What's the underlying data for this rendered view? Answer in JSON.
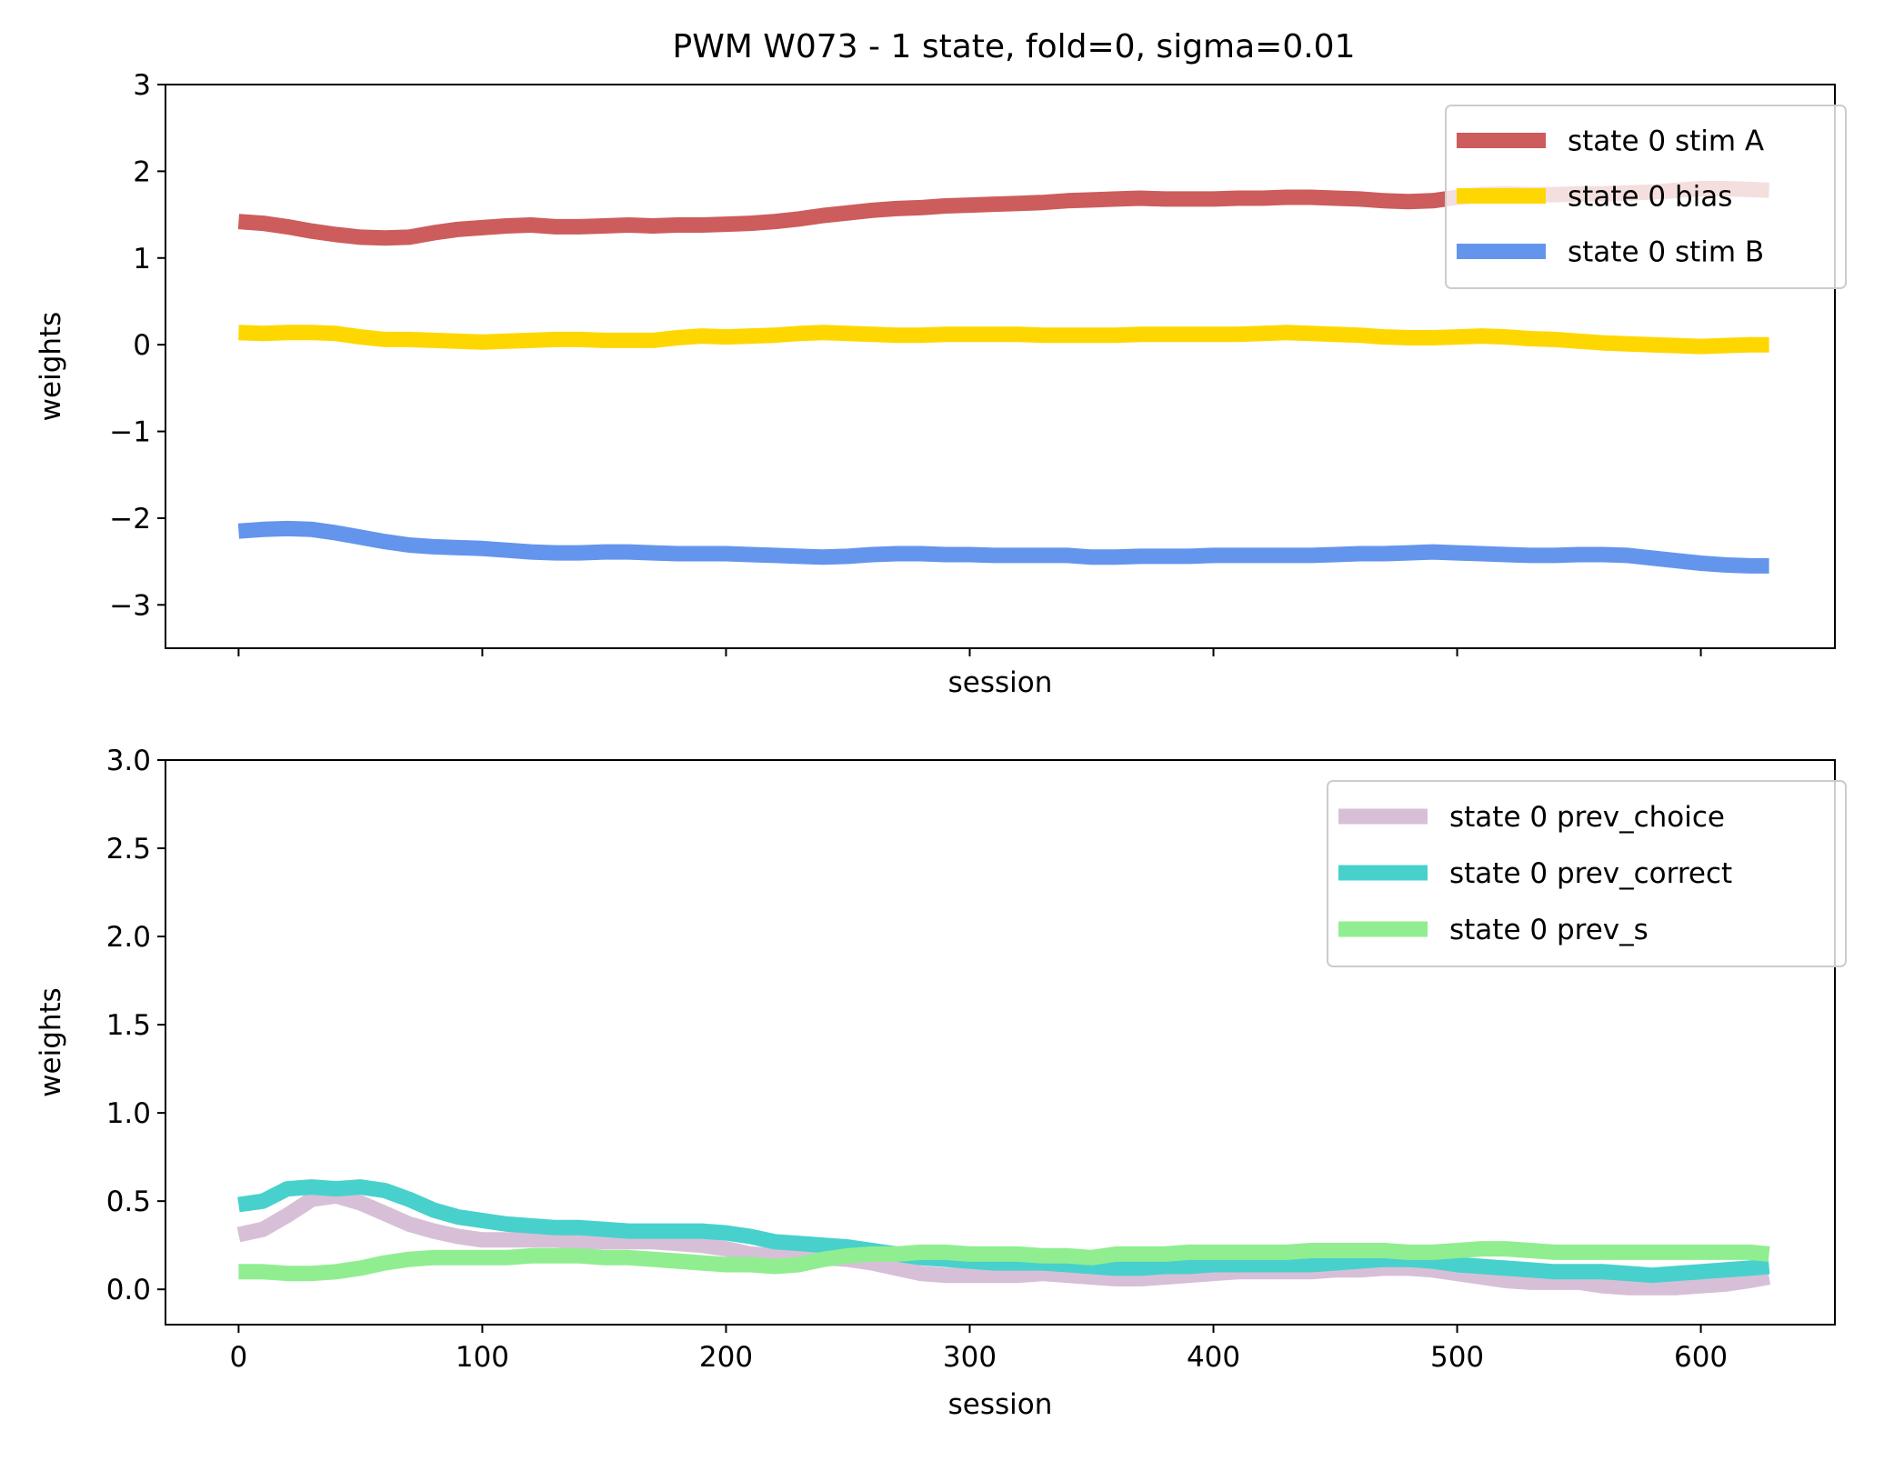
{
  "title": "PWM W073 - 1 state, fold=0, sigma=0.01",
  "chart_data": [
    {
      "type": "line",
      "xlabel": "session",
      "ylabel": "weights",
      "xlim": [
        -30,
        655
      ],
      "ylim": [
        -3.5,
        3
      ],
      "x_ticks": [
        0,
        100,
        200,
        300,
        400,
        500,
        600
      ],
      "x_tick_labels_shown": false,
      "y_ticks": [
        -3,
        -2,
        -1,
        0,
        1,
        2,
        3
      ],
      "y_tick_labels": [
        "−3",
        "−2",
        "−1",
        "0",
        "1",
        "2",
        "3"
      ],
      "legend_position": "upper-right",
      "series": [
        {
          "name": "state 0 stim A",
          "color": "#cd5c5c",
          "x": [
            0,
            10,
            20,
            30,
            40,
            50,
            60,
            70,
            80,
            90,
            100,
            110,
            120,
            130,
            140,
            150,
            160,
            170,
            180,
            190,
            200,
            210,
            220,
            230,
            240,
            250,
            260,
            270,
            280,
            290,
            300,
            310,
            320,
            330,
            340,
            350,
            360,
            370,
            380,
            390,
            400,
            410,
            420,
            430,
            440,
            450,
            460,
            470,
            480,
            490,
            500,
            510,
            520,
            530,
            540,
            550,
            560,
            570,
            580,
            590,
            600,
            610,
            620,
            628
          ],
          "values": [
            1.42,
            1.4,
            1.36,
            1.31,
            1.27,
            1.24,
            1.23,
            1.24,
            1.29,
            1.33,
            1.35,
            1.37,
            1.38,
            1.36,
            1.36,
            1.37,
            1.38,
            1.37,
            1.38,
            1.38,
            1.39,
            1.4,
            1.42,
            1.45,
            1.49,
            1.52,
            1.55,
            1.57,
            1.58,
            1.6,
            1.61,
            1.62,
            1.63,
            1.64,
            1.66,
            1.67,
            1.68,
            1.69,
            1.68,
            1.68,
            1.68,
            1.69,
            1.69,
            1.7,
            1.7,
            1.69,
            1.68,
            1.66,
            1.65,
            1.66,
            1.7,
            1.73,
            1.74,
            1.73,
            1.73,
            1.74,
            1.74,
            1.75,
            1.76,
            1.78,
            1.8,
            1.8,
            1.79,
            1.78
          ]
        },
        {
          "name": "state 0 bias",
          "color": "#ffd700",
          "x": [
            0,
            10,
            20,
            30,
            40,
            50,
            60,
            70,
            80,
            90,
            100,
            110,
            120,
            130,
            140,
            150,
            160,
            170,
            180,
            190,
            200,
            210,
            220,
            230,
            240,
            250,
            260,
            270,
            280,
            290,
            300,
            310,
            320,
            330,
            340,
            350,
            360,
            370,
            380,
            390,
            400,
            410,
            420,
            430,
            440,
            450,
            460,
            470,
            480,
            490,
            500,
            510,
            520,
            530,
            540,
            550,
            560,
            570,
            580,
            590,
            600,
            610,
            620,
            628
          ],
          "values": [
            0.14,
            0.13,
            0.14,
            0.14,
            0.13,
            0.09,
            0.06,
            0.06,
            0.05,
            0.04,
            0.03,
            0.04,
            0.05,
            0.06,
            0.06,
            0.05,
            0.05,
            0.05,
            0.08,
            0.1,
            0.09,
            0.1,
            0.11,
            0.13,
            0.14,
            0.13,
            0.12,
            0.11,
            0.11,
            0.12,
            0.12,
            0.12,
            0.12,
            0.11,
            0.11,
            0.11,
            0.11,
            0.12,
            0.12,
            0.12,
            0.12,
            0.12,
            0.13,
            0.14,
            0.13,
            0.12,
            0.11,
            0.09,
            0.08,
            0.08,
            0.09,
            0.1,
            0.09,
            0.07,
            0.06,
            0.04,
            0.02,
            0.01,
            0.0,
            -0.01,
            -0.02,
            -0.01,
            0.0,
            0.0
          ]
        },
        {
          "name": "state 0 stim B",
          "color": "#6495ed",
          "x": [
            0,
            10,
            20,
            30,
            40,
            50,
            60,
            70,
            80,
            90,
            100,
            110,
            120,
            130,
            140,
            150,
            160,
            170,
            180,
            190,
            200,
            210,
            220,
            230,
            240,
            250,
            260,
            270,
            280,
            290,
            300,
            310,
            320,
            330,
            340,
            350,
            360,
            370,
            380,
            390,
            400,
            410,
            420,
            430,
            440,
            450,
            460,
            470,
            480,
            490,
            500,
            510,
            520,
            530,
            540,
            550,
            560,
            570,
            580,
            590,
            600,
            610,
            620,
            628
          ],
          "values": [
            -2.15,
            -2.13,
            -2.12,
            -2.13,
            -2.17,
            -2.22,
            -2.27,
            -2.31,
            -2.33,
            -2.34,
            -2.35,
            -2.37,
            -2.39,
            -2.4,
            -2.4,
            -2.39,
            -2.39,
            -2.4,
            -2.41,
            -2.41,
            -2.41,
            -2.42,
            -2.43,
            -2.44,
            -2.45,
            -2.44,
            -2.42,
            -2.41,
            -2.41,
            -2.42,
            -2.42,
            -2.43,
            -2.43,
            -2.43,
            -2.43,
            -2.45,
            -2.45,
            -2.44,
            -2.44,
            -2.44,
            -2.43,
            -2.43,
            -2.43,
            -2.43,
            -2.43,
            -2.42,
            -2.41,
            -2.41,
            -2.4,
            -2.39,
            -2.4,
            -2.41,
            -2.42,
            -2.43,
            -2.43,
            -2.42,
            -2.42,
            -2.43,
            -2.46,
            -2.49,
            -2.52,
            -2.54,
            -2.55,
            -2.55
          ]
        }
      ]
    },
    {
      "type": "line",
      "xlabel": "session",
      "ylabel": "weights",
      "xlim": [
        -30,
        655
      ],
      "ylim": [
        -0.2,
        3.0
      ],
      "x_ticks": [
        0,
        100,
        200,
        300,
        400,
        500,
        600
      ],
      "x_tick_labels": [
        "0",
        "100",
        "200",
        "300",
        "400",
        "500",
        "600"
      ],
      "y_ticks": [
        0.0,
        0.5,
        1.0,
        1.5,
        2.0,
        2.5,
        3.0
      ],
      "y_tick_labels": [
        "0.0",
        "0.5",
        "1.0",
        "1.5",
        "2.0",
        "2.5",
        "3.0"
      ],
      "legend_position": "upper-right",
      "series": [
        {
          "name": "state 0 prev_choice",
          "color": "#d8bfd8",
          "x": [
            0,
            10,
            20,
            30,
            40,
            50,
            60,
            70,
            80,
            90,
            100,
            110,
            120,
            130,
            140,
            150,
            160,
            170,
            180,
            190,
            200,
            210,
            220,
            230,
            240,
            250,
            260,
            270,
            280,
            290,
            300,
            310,
            320,
            330,
            340,
            350,
            360,
            370,
            380,
            390,
            400,
            410,
            420,
            430,
            440,
            450,
            460,
            470,
            480,
            490,
            500,
            510,
            520,
            530,
            540,
            550,
            560,
            570,
            580,
            590,
            600,
            610,
            620,
            628
          ],
          "values": [
            0.31,
            0.34,
            0.42,
            0.51,
            0.53,
            0.49,
            0.43,
            0.37,
            0.33,
            0.3,
            0.28,
            0.28,
            0.28,
            0.28,
            0.27,
            0.27,
            0.27,
            0.27,
            0.26,
            0.25,
            0.23,
            0.2,
            0.19,
            0.18,
            0.18,
            0.17,
            0.15,
            0.12,
            0.09,
            0.08,
            0.08,
            0.08,
            0.08,
            0.09,
            0.08,
            0.07,
            0.06,
            0.06,
            0.07,
            0.08,
            0.09,
            0.1,
            0.1,
            0.1,
            0.1,
            0.11,
            0.11,
            0.12,
            0.12,
            0.11,
            0.09,
            0.07,
            0.05,
            0.04,
            0.04,
            0.04,
            0.02,
            0.01,
            0.01,
            0.01,
            0.02,
            0.03,
            0.05,
            0.07
          ]
        },
        {
          "name": "state 0 prev_correct",
          "color": "#48d1cc",
          "x": [
            0,
            10,
            20,
            30,
            40,
            50,
            60,
            70,
            80,
            90,
            100,
            110,
            120,
            130,
            140,
            150,
            160,
            170,
            180,
            190,
            200,
            210,
            220,
            230,
            240,
            250,
            260,
            270,
            280,
            290,
            300,
            310,
            320,
            330,
            340,
            350,
            360,
            370,
            380,
            390,
            400,
            410,
            420,
            430,
            440,
            450,
            460,
            470,
            480,
            490,
            500,
            510,
            520,
            530,
            540,
            550,
            560,
            570,
            580,
            590,
            600,
            610,
            620,
            628
          ],
          "values": [
            0.48,
            0.5,
            0.57,
            0.58,
            0.57,
            0.58,
            0.56,
            0.51,
            0.45,
            0.41,
            0.39,
            0.37,
            0.36,
            0.35,
            0.35,
            0.34,
            0.33,
            0.33,
            0.33,
            0.33,
            0.32,
            0.3,
            0.27,
            0.26,
            0.25,
            0.24,
            0.22,
            0.2,
            0.18,
            0.17,
            0.16,
            0.15,
            0.15,
            0.15,
            0.14,
            0.13,
            0.12,
            0.12,
            0.13,
            0.13,
            0.14,
            0.14,
            0.14,
            0.14,
            0.14,
            0.15,
            0.16,
            0.17,
            0.17,
            0.16,
            0.14,
            0.13,
            0.12,
            0.11,
            0.1,
            0.1,
            0.1,
            0.09,
            0.08,
            0.09,
            0.1,
            0.11,
            0.12,
            0.13
          ]
        },
        {
          "name": "state 0 prev_s",
          "color": "#90ee90",
          "x": [
            0,
            10,
            20,
            30,
            40,
            50,
            60,
            70,
            80,
            90,
            100,
            110,
            120,
            130,
            140,
            150,
            160,
            170,
            180,
            190,
            200,
            210,
            220,
            230,
            240,
            250,
            260,
            270,
            280,
            290,
            300,
            310,
            320,
            330,
            340,
            350,
            360,
            370,
            380,
            390,
            400,
            410,
            420,
            430,
            440,
            450,
            460,
            470,
            480,
            490,
            500,
            510,
            520,
            530,
            540,
            550,
            560,
            570,
            580,
            590,
            600,
            610,
            620,
            628
          ],
          "values": [
            0.1,
            0.1,
            0.09,
            0.09,
            0.1,
            0.12,
            0.15,
            0.17,
            0.18,
            0.18,
            0.18,
            0.18,
            0.19,
            0.19,
            0.19,
            0.18,
            0.18,
            0.17,
            0.16,
            0.15,
            0.14,
            0.14,
            0.13,
            0.14,
            0.17,
            0.19,
            0.2,
            0.2,
            0.21,
            0.21,
            0.2,
            0.2,
            0.2,
            0.19,
            0.19,
            0.18,
            0.2,
            0.2,
            0.2,
            0.21,
            0.21,
            0.21,
            0.21,
            0.21,
            0.22,
            0.22,
            0.22,
            0.22,
            0.21,
            0.21,
            0.22,
            0.23,
            0.23,
            0.22,
            0.21,
            0.21,
            0.21,
            0.21,
            0.21,
            0.21,
            0.21,
            0.21,
            0.21,
            0.2
          ]
        }
      ]
    }
  ]
}
